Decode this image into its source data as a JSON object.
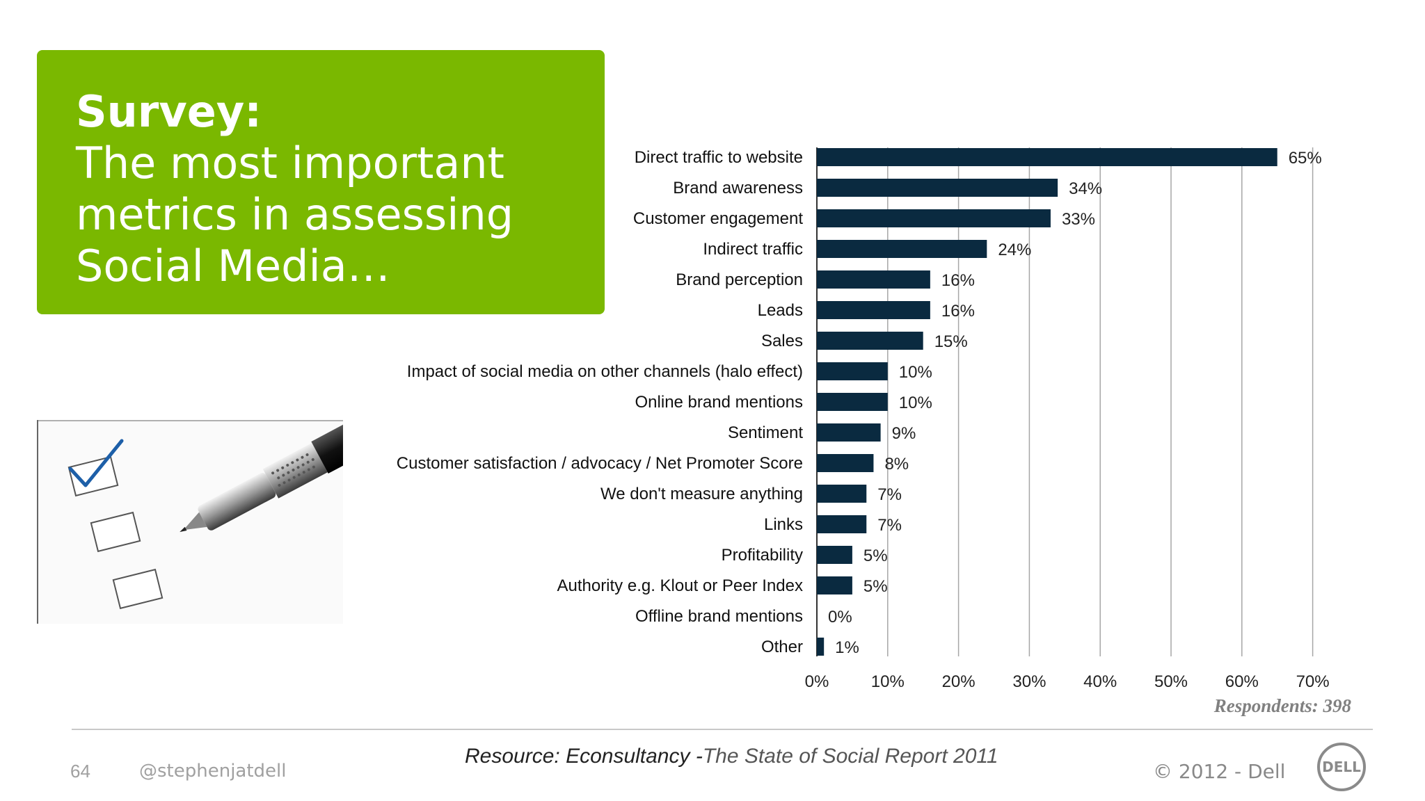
{
  "slide": {
    "title_bold": "Survey:",
    "title_text": "The most important metrics in assessing Social Media…",
    "respondents": "Respondents: 398",
    "source_prefix": "Resource: Econsultancy -",
    "source_report": "The State of Social Report 2011",
    "page_number": "64",
    "handle": "@stephenjatdell",
    "copyright": "© 2012 - Dell",
    "logo": "DELL"
  },
  "colors": {
    "title_box": "#7ab800",
    "bar": "#0a2a40"
  },
  "chart_data": {
    "type": "bar",
    "orientation": "horizontal",
    "categories": [
      "Direct traffic to website",
      "Brand awareness",
      "Customer engagement",
      "Indirect traffic",
      "Brand perception",
      "Leads",
      "Sales",
      "Impact of social media on other channels (halo effect)",
      "Online brand mentions",
      "Sentiment",
      "Customer satisfaction / advocacy / Net Promoter Score",
      "We don't measure anything",
      "Links",
      "Profitability",
      "Authority e.g. Klout or Peer Index",
      "Offline brand mentions",
      "Other"
    ],
    "values": [
      65,
      34,
      33,
      24,
      16,
      16,
      15,
      10,
      10,
      9,
      8,
      7,
      7,
      5,
      5,
      0,
      1
    ],
    "data_labels": [
      "65%",
      "34%",
      "33%",
      "24%",
      "16%",
      "16%",
      "15%",
      "10%",
      "10%",
      "9%",
      "8%",
      "7%",
      "7%",
      "5%",
      "5%",
      "0%",
      "1%"
    ],
    "xlim": [
      0,
      70
    ],
    "x_ticks": [
      "0%",
      "10%",
      "20%",
      "30%",
      "40%",
      "50%",
      "60%",
      "70%"
    ],
    "grid": true
  }
}
